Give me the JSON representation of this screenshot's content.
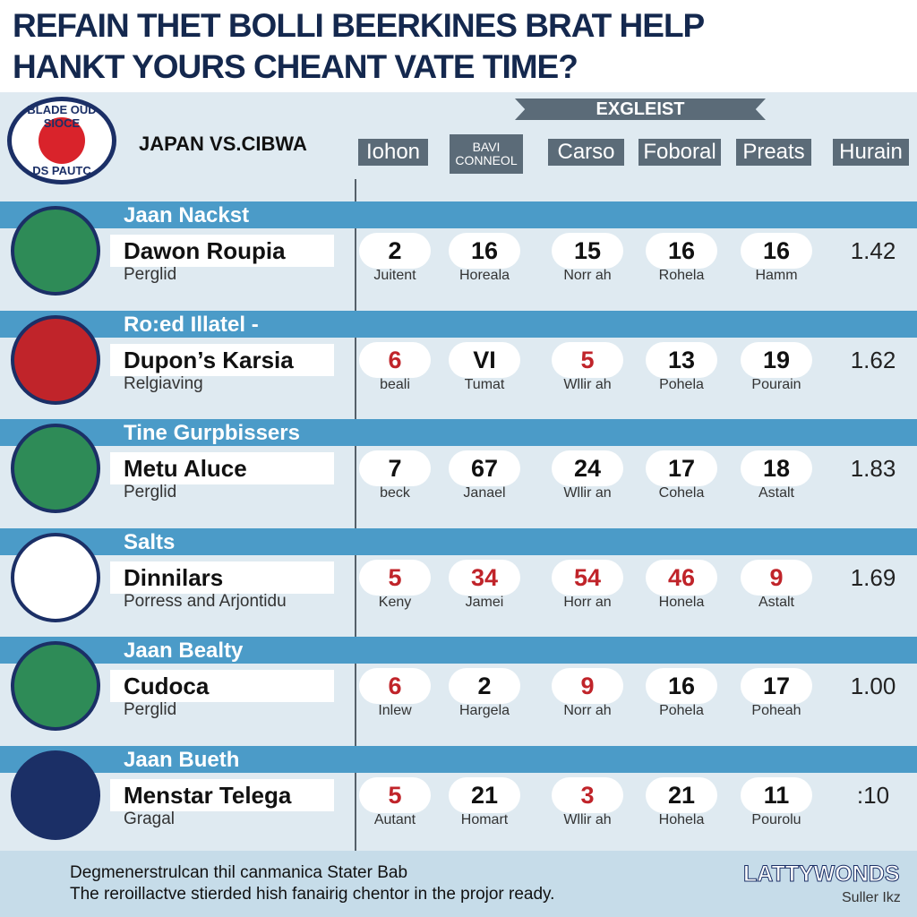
{
  "header": {
    "title_lines": [
      "REFAIN THET BOLLI BEERKINES BRAT HELP",
      "HANKT YOURS CHEANT VATE TIME?"
    ]
  },
  "badge": {
    "top": "BLADE OUD SIOCE",
    "bottom": "DS PAUTC"
  },
  "matchup": "JAPAN VS.CIBWA",
  "banner": "EXGLEIST",
  "columns": [
    "Iohon",
    "BAVI CONNEOL",
    "Carso",
    "Foboral",
    "Preats",
    "Hurain"
  ],
  "rows": [
    {
      "section": "Jaan Nackst",
      "name": "Dawon Roupia",
      "sub": "Perglid",
      "badge_color": "#2e8b57",
      "cells": [
        {
          "value": "2",
          "label": "Juitent",
          "color": "#111111"
        },
        {
          "value": "16",
          "label": "Horeala",
          "color": "#111111"
        },
        {
          "value": "15",
          "label": "Norr ah",
          "color": "#111111"
        },
        {
          "value": "16",
          "label": "Rohela",
          "color": "#111111"
        },
        {
          "value": "16",
          "label": "Hamm",
          "color": "#111111"
        }
      ],
      "last": "1.42"
    },
    {
      "section": "Ro:ed Illatel -",
      "name": "Dupon’s Karsia",
      "sub": "Relgiaving",
      "badge_color": "#c0242a",
      "cells": [
        {
          "value": "6",
          "label": "beali",
          "color": "#c0242a"
        },
        {
          "value": "VI",
          "label": "Tumat",
          "color": "#111111"
        },
        {
          "value": "5",
          "label": "Wllir ah",
          "color": "#c0242a"
        },
        {
          "value": "13",
          "label": "Pohela",
          "color": "#111111"
        },
        {
          "value": "19",
          "label": "Pourain",
          "color": "#111111"
        }
      ],
      "last": "1.62"
    },
    {
      "section": "Tine Gurpbissers",
      "name": "Metu Aluce",
      "sub": "Perglid",
      "badge_color": "#2e8b57",
      "cells": [
        {
          "value": "7",
          "label": "beck",
          "color": "#111111"
        },
        {
          "value": "67",
          "label": "Janael",
          "color": "#111111"
        },
        {
          "value": "24",
          "label": "Wllir an",
          "color": "#111111"
        },
        {
          "value": "17",
          "label": "Cohela",
          "color": "#111111"
        },
        {
          "value": "18",
          "label": "Astalt",
          "color": "#111111"
        }
      ],
      "last": "1.83"
    },
    {
      "section": "Salts",
      "name": "Dinnilars",
      "sub": "Porress and Arjontidu",
      "badge_color": "#ffffff",
      "cells": [
        {
          "value": "5",
          "label": "Keny",
          "color": "#c0242a"
        },
        {
          "value": "34",
          "label": "Jamei",
          "color": "#c0242a"
        },
        {
          "value": "54",
          "label": "Horr an",
          "color": "#c0242a"
        },
        {
          "value": "46",
          "label": "Honela",
          "color": "#c0242a"
        },
        {
          "value": "9",
          "label": "Astalt",
          "color": "#c0242a"
        }
      ],
      "last": "1.69"
    },
    {
      "section": "Jaan Bealty",
      "name": "Cudoca",
      "sub": "Perglid",
      "badge_color": "#2e8b57",
      "cells": [
        {
          "value": "6",
          "label": "Inlew",
          "color": "#c0242a"
        },
        {
          "value": "2",
          "label": "Hargela",
          "color": "#111111"
        },
        {
          "value": "9",
          "label": "Norr ah",
          "color": "#c0242a"
        },
        {
          "value": "16",
          "label": "Pohela",
          "color": "#111111"
        },
        {
          "value": "17",
          "label": "Poheah",
          "color": "#111111"
        }
      ],
      "last": "1.00"
    },
    {
      "section": "Jaan Bueth",
      "name": "Menstar Telega",
      "sub": "Gragal",
      "badge_color": "#1b2f66",
      "cells": [
        {
          "value": "5",
          "label": "Autant",
          "color": "#c0242a"
        },
        {
          "value": "21",
          "label": "Homart",
          "color": "#111111"
        },
        {
          "value": "3",
          "label": "Wllir ah",
          "color": "#c0242a"
        },
        {
          "value": "21",
          "label": "Hohela",
          "color": "#111111"
        },
        {
          "value": "11",
          "label": "Pourolu",
          "color": "#111111"
        }
      ],
      "last": ":10"
    }
  ],
  "footer": {
    "lines": [
      "Degmenerstrulcan thil canmanica Stater Bab",
      "The reroillactve stierded hish fanairig chentor in the projor ready."
    ],
    "brand": "LATTYWONDS",
    "brand_sub": "Suller Ikz"
  }
}
